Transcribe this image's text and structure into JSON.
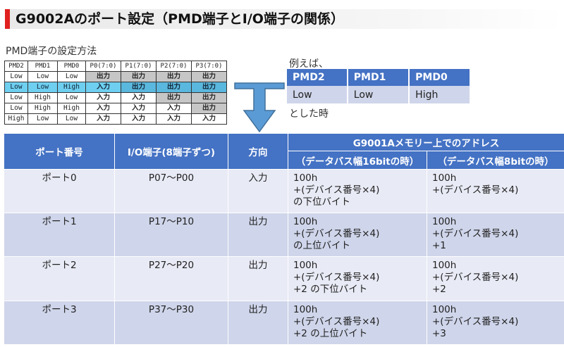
{
  "title": "G9002Aのポート設定（PMD端子とI/O端子の関係）",
  "colors": {
    "accent": "#e0201f",
    "header_blue": "#4472c4",
    "row_light": "#e8eaf5",
    "row_mid": "#cfd5ea",
    "highlight": "#6ecff0"
  },
  "pmd_caption": "PMD端子の設定方法",
  "pmd_table": {
    "headers": [
      "PMD2",
      "PMD1",
      "PMD0",
      "P0(7:0)",
      "P1(7:0)",
      "P2(7:0)",
      "P3(7:0)"
    ],
    "rows": [
      [
        "Low",
        "Low",
        "Low",
        "出力",
        "出力",
        "出力",
        "出力"
      ],
      [
        "Low",
        "Low",
        "High",
        "入力",
        "出力",
        "出力",
        "出力"
      ],
      [
        "Low",
        "High",
        "Low",
        "入力",
        "入力",
        "出力",
        "出力"
      ],
      [
        "Low",
        "High",
        "High",
        "入力",
        "入力",
        "入力",
        "出力"
      ],
      [
        "High",
        "Low",
        "Low",
        "入力",
        "入力",
        "入力",
        "入力"
      ]
    ],
    "highlighted_row": 1
  },
  "example": {
    "caption": "例えば、",
    "headers": [
      "PMD2",
      "PMD1",
      "PMD0"
    ],
    "values": [
      "Low",
      "Low",
      "High"
    ],
    "tail": "とした時"
  },
  "arrow_icon": "down-arrow-icon",
  "main_table": {
    "headers": {
      "port": "ポート番号",
      "io": "I/O端子(8端子ずつ)",
      "direction": "方向",
      "address": "G9001Aメモリー上でのアドレス",
      "bus16": "（データバス幅16bitの時）",
      "bus8": "（データバス幅8bitの時）"
    },
    "rows": [
      {
        "port": "ポート0",
        "io": "P07～P00",
        "direction": "入力",
        "addr16": [
          "100h",
          "+(デバイス番号×4)",
          "の下位バイト"
        ],
        "addr8": [
          "100h",
          "+(デバイス番号×4)"
        ]
      },
      {
        "port": "ポート1",
        "io": "P17～P10",
        "direction": "出力",
        "addr16": [
          "100h",
          "+(デバイス番号×4)",
          "の上位バイト"
        ],
        "addr8": [
          "100h",
          "+(デバイス番号×4)",
          "+1"
        ]
      },
      {
        "port": "ポート2",
        "io": "P27～P20",
        "direction": "出力",
        "addr16": [
          "100h",
          "+(デバイス番号×4)",
          "+2 の下位バイト"
        ],
        "addr8": [
          "100h",
          "+(デバイス番号×4)",
          "+2"
        ]
      },
      {
        "port": "ポート3",
        "io": "P37～P30",
        "direction": "出力",
        "addr16": [
          "100h",
          "+(デバイス番号×4)",
          "+2 の上位バイト"
        ],
        "addr8": [
          "100h",
          "+(デバイス番号×4)",
          "+3"
        ]
      }
    ]
  }
}
